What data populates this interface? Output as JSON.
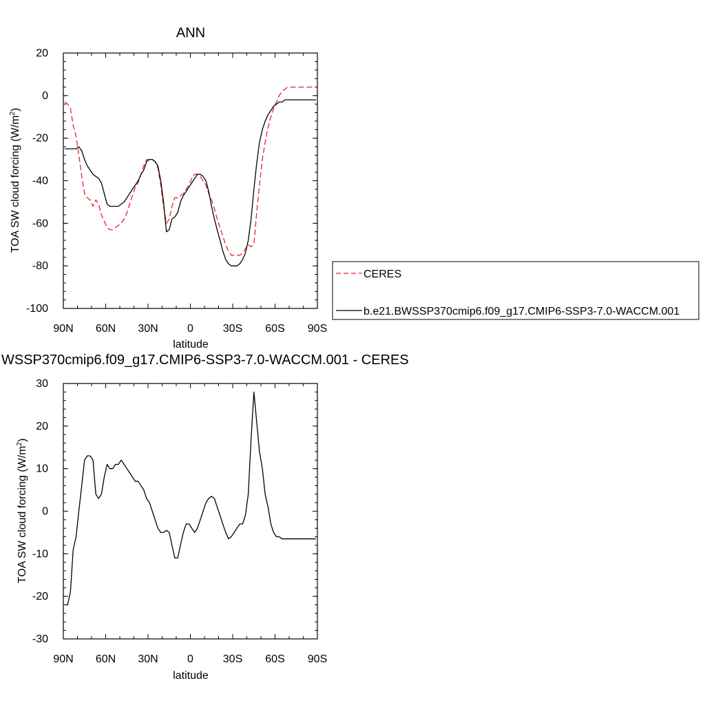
{
  "chart_data": [
    {
      "type": "line",
      "title": "ANN",
      "xlabel": "latitude",
      "ylabel": "TOA SW cloud forcing (W/m",
      "ylabel_sup": "2",
      "ylabel_end": ")",
      "xlim": [
        90,
        -90
      ],
      "ylim": [
        -100,
        20
      ],
      "xticks": [
        90,
        60,
        30,
        0,
        -30,
        -60,
        -90
      ],
      "xtick_labels": [
        "90N",
        "60N",
        "30N",
        "0",
        "30S",
        "60S",
        "90S"
      ],
      "yticks": [
        20,
        0,
        -20,
        -40,
        -60,
        -80,
        -100
      ],
      "ytick_labels": [
        "20",
        "0",
        "-20",
        "-40",
        "-60",
        "-80",
        "-100"
      ],
      "legend_position": "right",
      "series": [
        {
          "name": "CERES",
          "color": "#e8202a",
          "dash": true,
          "x": [
            89,
            87,
            85,
            83,
            81,
            79,
            77,
            75,
            73,
            71,
            69,
            67,
            65,
            63,
            61,
            59,
            57,
            55,
            53,
            51,
            49,
            47,
            45,
            43,
            41,
            39,
            37,
            35,
            33,
            31,
            29,
            27,
            25,
            23,
            21,
            19,
            17,
            15,
            13,
            11,
            9,
            7,
            5,
            3,
            1,
            -1,
            -3,
            -5,
            -7,
            -9,
            -11,
            -13,
            -15,
            -17,
            -19,
            -21,
            -23,
            -25,
            -27,
            -29,
            -31,
            -33,
            -35,
            -37,
            -39,
            -41,
            -43,
            -45,
            -47,
            -49,
            -51,
            -53,
            -55,
            -57,
            -59,
            -61,
            -63,
            -65,
            -67,
            -69,
            -71,
            -73,
            -75,
            -77,
            -79,
            -81,
            -83,
            -85,
            -87,
            -89
          ],
          "y": [
            -3,
            -4,
            -6,
            -14,
            -19,
            -28,
            -38,
            -46,
            -48,
            -49,
            -52,
            -49,
            -51,
            -56,
            -59,
            -62,
            -63,
            -63,
            -62,
            -61,
            -60,
            -58,
            -55,
            -51,
            -47,
            -43,
            -41,
            -37,
            -33,
            -30,
            -30,
            -30,
            -31,
            -34,
            -42,
            -52,
            -60,
            -58,
            -52,
            -48,
            -48,
            -47,
            -46,
            -44,
            -42,
            -39,
            -37,
            -37,
            -38,
            -40,
            -42,
            -46,
            -49,
            -53,
            -58,
            -62,
            -66,
            -70,
            -73,
            -75,
            -75,
            -75,
            -75,
            -74,
            -72,
            -70,
            -71,
            -70,
            -55,
            -42,
            -30,
            -22,
            -15,
            -10,
            -6,
            -3,
            0,
            2,
            3,
            4,
            4,
            4,
            4,
            4,
            4,
            4,
            4,
            4,
            4,
            4
          ]
        },
        {
          "name": "b.e21.BWSSP370cmip6.f09_g17.CMIP6-SSP3-7.0-WACCM.001",
          "color": "#000000",
          "dash": false,
          "x": [
            89,
            87,
            85,
            83,
            81,
            79,
            77,
            75,
            73,
            71,
            69,
            67,
            65,
            63,
            61,
            59,
            57,
            55,
            53,
            51,
            49,
            47,
            45,
            43,
            41,
            39,
            37,
            35,
            33,
            31,
            29,
            27,
            25,
            23,
            21,
            19,
            17,
            15,
            13,
            11,
            9,
            7,
            5,
            3,
            1,
            -1,
            -3,
            -5,
            -7,
            -9,
            -11,
            -13,
            -15,
            -17,
            -19,
            -21,
            -23,
            -25,
            -27,
            -29,
            -31,
            -33,
            -35,
            -37,
            -39,
            -41,
            -43,
            -45,
            -47,
            -49,
            -51,
            -53,
            -55,
            -57,
            -59,
            -61,
            -63,
            -65,
            -67,
            -69,
            -71,
            -73,
            -75,
            -77,
            -79,
            -81,
            -83,
            -85,
            -87,
            -89
          ],
          "y": [
            -25,
            -25,
            -25,
            -25,
            -25,
            -24,
            -26,
            -30,
            -33,
            -35,
            -37,
            -38,
            -39,
            -41,
            -46,
            -51,
            -52,
            -52,
            -52,
            -52,
            -51,
            -50,
            -48,
            -46,
            -44,
            -42,
            -40,
            -37,
            -35,
            -31,
            -30,
            -30,
            -31,
            -33,
            -40,
            -50,
            -64,
            -63,
            -58,
            -57,
            -55,
            -50,
            -47,
            -45,
            -43,
            -41,
            -39,
            -37,
            -37,
            -38,
            -40,
            -45,
            -52,
            -58,
            -63,
            -68,
            -73,
            -77,
            -79,
            -80,
            -80,
            -80,
            -79,
            -77,
            -74,
            -68,
            -58,
            -44,
            -32,
            -22,
            -16,
            -12,
            -9,
            -7,
            -5,
            -4,
            -3,
            -3,
            -2,
            -2,
            -2,
            -2,
            -2,
            -2,
            -2,
            -2,
            -2,
            -2,
            -2,
            -2
          ]
        }
      ]
    },
    {
      "type": "line",
      "title": "WSSP370cmip6.f09_g17.CMIP6-SSP3-7.0-WACCM.001 - CERES",
      "xlabel": "latitude",
      "ylabel": "TOA SW cloud forcing (W/m",
      "ylabel_sup": "2",
      "ylabel_end": ")",
      "xlim": [
        90,
        -90
      ],
      "ylim": [
        -30,
        30
      ],
      "xticks": [
        90,
        60,
        30,
        0,
        -30,
        -60,
        -90
      ],
      "xtick_labels": [
        "90N",
        "60N",
        "30N",
        "0",
        "30S",
        "60S",
        "90S"
      ],
      "yticks": [
        30,
        20,
        10,
        0,
        -10,
        -20,
        -30
      ],
      "ytick_labels": [
        "30",
        "20",
        "10",
        "0",
        "-10",
        "-20",
        "-30"
      ],
      "series": [
        {
          "color": "#000000",
          "x": [
            89,
            87,
            85,
            83,
            81,
            79,
            77,
            75,
            73,
            71,
            69,
            67,
            65,
            63,
            61,
            59,
            57,
            55,
            53,
            51,
            49,
            47,
            45,
            43,
            41,
            39,
            37,
            35,
            33,
            31,
            29,
            27,
            25,
            23,
            21,
            19,
            17,
            15,
            13,
            11,
            9,
            7,
            5,
            3,
            1,
            -1,
            -3,
            -5,
            -7,
            -9,
            -11,
            -13,
            -15,
            -17,
            -19,
            -21,
            -23,
            -25,
            -27,
            -29,
            -31,
            -33,
            -35,
            -37,
            -39,
            -41,
            -43,
            -45,
            -47,
            -49,
            -51,
            -53,
            -55,
            -57,
            -59,
            -61,
            -63,
            -65,
            -67,
            -69,
            -71,
            -73,
            -75,
            -77,
            -79,
            -81,
            -83,
            -85,
            -87,
            -89
          ],
          "y": [
            -22,
            -22,
            -19,
            -9,
            -6,
            0,
            6,
            12,
            13,
            13,
            12,
            4,
            3,
            4,
            8,
            11,
            10,
            10,
            11,
            11,
            12,
            11,
            10,
            9,
            8,
            7,
            7,
            6,
            5,
            3,
            2,
            0,
            -2,
            -4,
            -5,
            -5,
            -4.5,
            -5,
            -8,
            -11,
            -11,
            -8,
            -5,
            -3,
            -3,
            -4,
            -5,
            -4,
            -2,
            0,
            2,
            3,
            3.5,
            3,
            1,
            -1,
            -3,
            -5,
            -6.5,
            -6,
            -5,
            -4,
            -3,
            -3,
            -1,
            4,
            17,
            28,
            21,
            14,
            10,
            4,
            1,
            -3,
            -5,
            -6,
            -6,
            -6.5,
            -6.5,
            -6.5,
            -6.5,
            -6.5,
            -6.5,
            -6.5,
            -6.5,
            -6.5,
            -6.5,
            -6.5,
            -6.5,
            -6.5
          ]
        }
      ]
    }
  ]
}
